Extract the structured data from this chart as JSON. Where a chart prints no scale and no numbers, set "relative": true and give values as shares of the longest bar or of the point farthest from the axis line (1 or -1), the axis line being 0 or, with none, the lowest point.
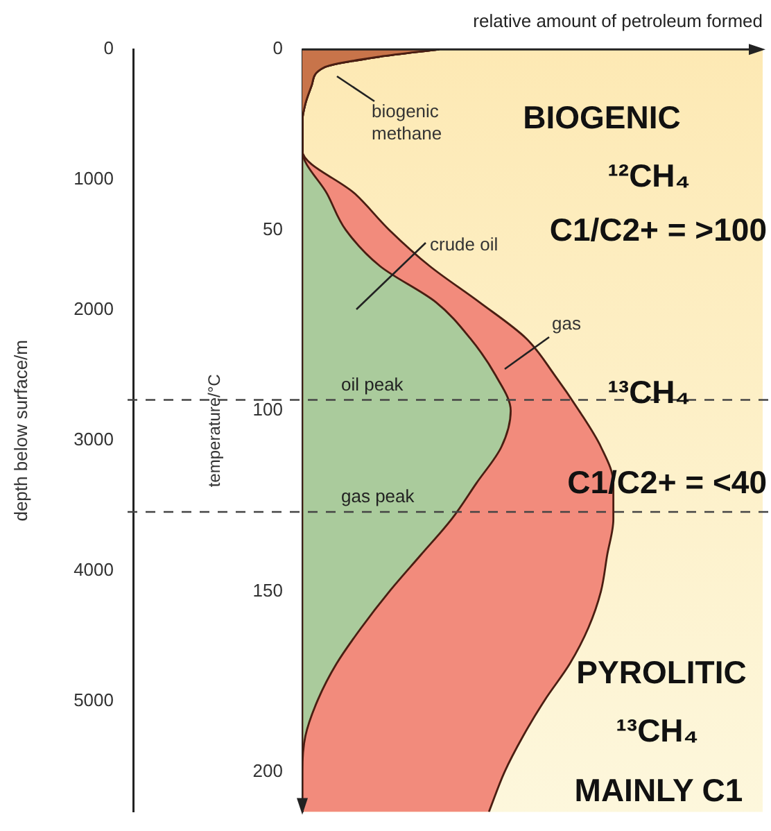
{
  "chart_data": {
    "type": "area",
    "orientation": "horizontal",
    "stacked": true,
    "relative": true,
    "marker": "none",
    "xlabel": "relative amount of petroleum formed",
    "ylabel": "temperature/°C",
    "y2label": "depth below surface/m",
    "x": [
      0,
      2,
      5,
      10,
      15,
      20,
      28,
      40,
      50,
      60,
      70,
      80,
      90,
      100,
      110,
      120,
      130,
      140,
      150,
      160,
      170,
      180,
      190,
      200,
      211
    ],
    "ylim": [
      211,
      0
    ],
    "yticks": [
      0,
      50,
      100,
      150,
      200
    ],
    "y2lim": [
      5850,
      0
    ],
    "y2ticks": [
      0,
      1000,
      2000,
      3000,
      4000,
      5000
    ],
    "series": [
      {
        "name": "biogenic methane",
        "color": "#c8744a",
        "values": [
          0.44,
          0.25,
          0.07,
          0.03,
          0.01,
          0,
          0,
          0,
          0,
          0,
          0,
          0,
          0,
          0,
          0,
          0,
          0,
          0,
          0,
          0,
          0,
          0,
          0,
          0,
          0
        ]
      },
      {
        "name": "crude oil",
        "color": "#aacb9c",
        "values": [
          0,
          0,
          0,
          0,
          0,
          0,
          0,
          0.08,
          0.14,
          0.25,
          0.43,
          0.54,
          0.62,
          0.67,
          0.64,
          0.56,
          0.48,
          0.38,
          0.28,
          0.19,
          0.11,
          0.05,
          0.01,
          0,
          0
        ]
      },
      {
        "name": "gas",
        "color": "#f28b7c",
        "values": [
          0,
          0,
          0,
          0,
          0,
          0,
          0,
          0.09,
          0.14,
          0.16,
          0.14,
          0.18,
          0.19,
          0.22,
          0.32,
          0.44,
          0.52,
          0.6,
          0.68,
          0.73,
          0.75,
          0.73,
          0.7,
          0.65,
          0.6
        ]
      }
    ],
    "ref_lines": [
      {
        "axis": "y",
        "value": 97,
        "label": "oil peak",
        "color": "#444444",
        "line_style": "dashed"
      },
      {
        "axis": "y",
        "value": 128,
        "label": "gas peak",
        "color": "#444444",
        "line_style": "dashed"
      }
    ],
    "annotations": [
      "BIOGENIC",
      "¹²CH₄",
      "C1/C2+ = >100",
      "¹³CH₄",
      "C1/C2+ = <40",
      "PYROLITIC",
      "¹³CH₄",
      "MAINLY C1"
    ]
  }
}
